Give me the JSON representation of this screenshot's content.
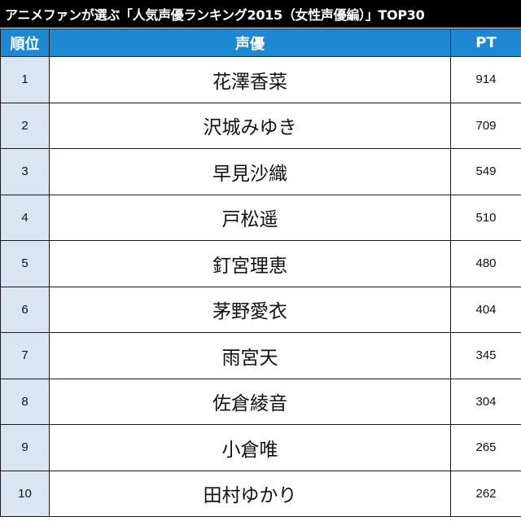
{
  "title": "アニメファンが選ぶ「人気声優ランキング2015（女性声優編）」TOP30",
  "table": {
    "headers": {
      "rank": "順位",
      "name": "声優",
      "pt": "PT"
    },
    "rows": [
      {
        "rank": "1",
        "name": "花澤香菜",
        "pt": "914"
      },
      {
        "rank": "2",
        "name": "沢城みゆき",
        "pt": "709"
      },
      {
        "rank": "3",
        "name": "早見沙織",
        "pt": "549"
      },
      {
        "rank": "4",
        "name": "戸松遥",
        "pt": "510"
      },
      {
        "rank": "5",
        "name": "釘宮理恵",
        "pt": "480"
      },
      {
        "rank": "6",
        "name": "茅野愛衣",
        "pt": "404"
      },
      {
        "rank": "7",
        "name": "雨宮天",
        "pt": "345"
      },
      {
        "rank": "8",
        "name": "佐倉綾音",
        "pt": "304"
      },
      {
        "rank": "9",
        "name": "小倉唯",
        "pt": "265"
      },
      {
        "rank": "10",
        "name": "田村ゆかり",
        "pt": "262"
      }
    ]
  },
  "colors": {
    "title_background": "#000000",
    "header_background": "#1e88d2",
    "rank_cell_background": "#dbe4f2"
  }
}
